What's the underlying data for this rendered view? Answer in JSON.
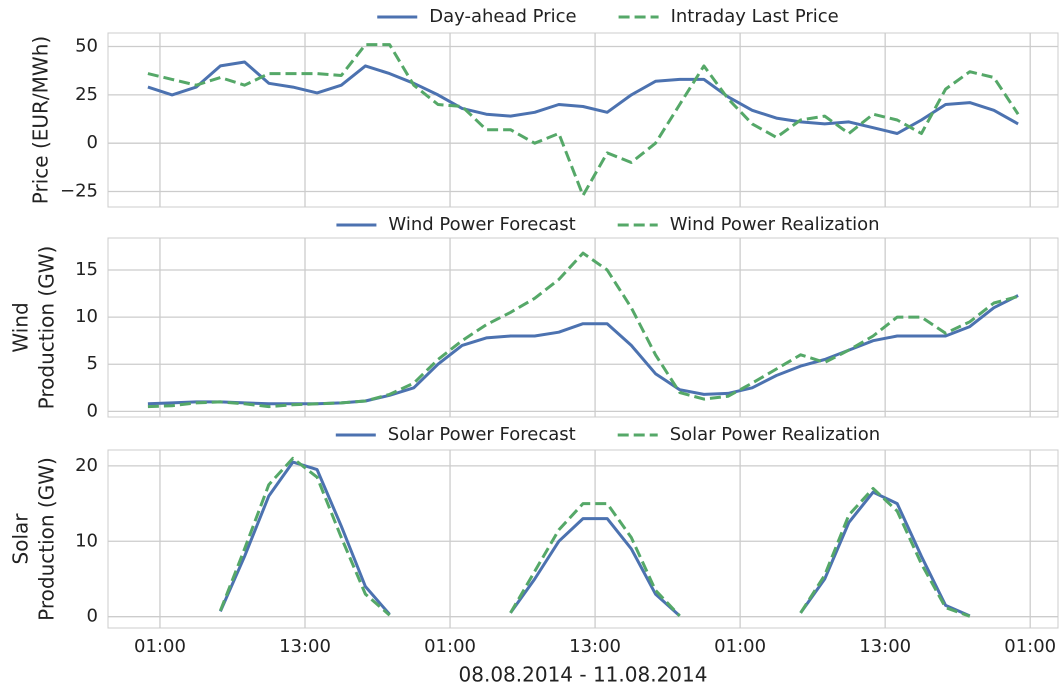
{
  "chart_data": [
    {
      "type": "line",
      "ylabel": [
        "Price (EUR/MWh)"
      ],
      "x": [
        0,
        2,
        4,
        6,
        8,
        10,
        12,
        14,
        16,
        18,
        20,
        22,
        24,
        26,
        28,
        30,
        32,
        34,
        36,
        38,
        40,
        42,
        44,
        46,
        48,
        50,
        52,
        54,
        56,
        58,
        60,
        62,
        64,
        66,
        68,
        70,
        72
      ],
      "xlim": [
        -3.3,
        75.3
      ],
      "xticks": [
        {
          "value": 1,
          "label": "01:00"
        },
        {
          "value": 13,
          "label": "13:00"
        },
        {
          "value": 25,
          "label": "01:00"
        },
        {
          "value": 37,
          "label": "13:00"
        },
        {
          "value": 49,
          "label": "01:00"
        },
        {
          "value": 61,
          "label": "13:00"
        },
        {
          "value": 73,
          "label": "01:00"
        }
      ],
      "ylim": [
        -33,
        57
      ],
      "yticks": [
        {
          "value": -25,
          "label": "−25"
        },
        0,
        25,
        50
      ],
      "grid": true,
      "series": [
        {
          "name": "Day-ahead Price",
          "color": "#4c72b0",
          "dashed": false,
          "values": [
            29,
            25,
            29,
            40,
            42,
            31,
            29,
            26,
            30,
            40,
            36,
            31,
            25,
            18,
            15,
            14,
            16,
            20,
            19,
            16,
            25,
            32,
            33,
            33,
            24,
            17,
            13,
            11,
            10,
            11,
            8,
            5,
            12,
            20,
            21,
            17,
            10
          ]
        },
        {
          "name": "Intraday Last Price",
          "color": "#55a868",
          "dashed": true,
          "values": [
            36,
            33,
            30,
            34,
            30,
            36,
            36,
            36,
            35,
            51,
            51,
            30,
            20,
            19,
            7,
            7,
            0,
            5,
            -27,
            -5,
            -10,
            0,
            20,
            40,
            23,
            10,
            3,
            12,
            14,
            5,
            15,
            12,
            5,
            28,
            37,
            34,
            15
          ]
        }
      ]
    },
    {
      "type": "line",
      "ylabel": [
        "Wind",
        "Production (GW)"
      ],
      "x": [
        0,
        2,
        4,
        6,
        8,
        10,
        12,
        14,
        16,
        18,
        20,
        22,
        24,
        26,
        28,
        30,
        32,
        34,
        36,
        38,
        40,
        42,
        44,
        46,
        48,
        50,
        52,
        54,
        56,
        58,
        60,
        62,
        64,
        66,
        68,
        70,
        72
      ],
      "xlim": [
        -3.3,
        75.3
      ],
      "xticks": [
        {
          "value": 1,
          "label": "01:00"
        },
        {
          "value": 13,
          "label": "13:00"
        },
        {
          "value": 25,
          "label": "01:00"
        },
        {
          "value": 37,
          "label": "13:00"
        },
        {
          "value": 49,
          "label": "01:00"
        },
        {
          "value": 61,
          "label": "13:00"
        },
        {
          "value": 73,
          "label": "01:00"
        }
      ],
      "ylim": [
        -0.6,
        18.4
      ],
      "yticks": [
        0,
        5,
        10,
        15
      ],
      "grid": true,
      "series": [
        {
          "name": "Wind Power Forecast",
          "color": "#4c72b0",
          "dashed": false,
          "values": [
            0.8,
            0.9,
            1.0,
            1.0,
            0.9,
            0.8,
            0.8,
            0.8,
            0.9,
            1.1,
            1.7,
            2.5,
            5,
            7,
            7.8,
            8,
            8,
            8.4,
            9.3,
            9.3,
            7,
            4,
            2.3,
            1.8,
            1.9,
            2.5,
            3.8,
            4.8,
            5.5,
            6.5,
            7.5,
            8,
            8,
            8,
            9,
            11,
            12.3
          ]
        },
        {
          "name": "Wind Power Realization",
          "color": "#55a868",
          "dashed": true,
          "values": [
            0.5,
            0.6,
            0.9,
            1.0,
            0.8,
            0.5,
            0.7,
            0.8,
            0.9,
            1.1,
            1.8,
            3,
            5.5,
            7.5,
            9.2,
            10.5,
            12,
            14,
            16.8,
            15,
            11,
            6,
            2,
            1.3,
            1.6,
            3,
            4.5,
            6,
            5.2,
            6.5,
            8,
            10,
            10,
            8.3,
            9.5,
            11.5,
            12.2
          ]
        }
      ]
    },
    {
      "type": "line",
      "ylabel": [
        "Solar",
        "Production (GW)"
      ],
      "xlabel": "08.08.2014 - 11.08.2014",
      "x": [
        0,
        2,
        4,
        6,
        8,
        10,
        12,
        14,
        16,
        18,
        20,
        22,
        24,
        26,
        28,
        30,
        32,
        34,
        36,
        38,
        40,
        42,
        44,
        46,
        48,
        50,
        52,
        54,
        56,
        58,
        60,
        62,
        64,
        66,
        68,
        70,
        72
      ],
      "xlim": [
        -3.3,
        75.3
      ],
      "xticks": [
        {
          "value": 1,
          "label": "01:00"
        },
        {
          "value": 13,
          "label": "13:00"
        },
        {
          "value": 25,
          "label": "01:00"
        },
        {
          "value": 37,
          "label": "13:00"
        },
        {
          "value": 49,
          "label": "01:00"
        },
        {
          "value": 61,
          "label": "13:00"
        },
        {
          "value": 73,
          "label": "01:00"
        }
      ],
      "ylim": [
        -1.5,
        22.1
      ],
      "yticks": [
        0,
        10,
        20
      ],
      "grid": true,
      "series": [
        {
          "name": "Solar Power Forecast",
          "color": "#4c72b0",
          "dashed": false,
          "values": [
            null,
            null,
            null,
            0.7,
            8,
            16,
            20.5,
            19.5,
            12,
            4,
            0.3,
            null,
            null,
            null,
            null,
            0.5,
            5,
            10,
            13,
            13,
            9,
            3,
            0.1,
            null,
            null,
            null,
            null,
            0.5,
            5,
            12.5,
            16.5,
            15,
            8,
            1.5,
            0.1,
            null,
            null
          ]
        },
        {
          "name": "Solar Power Realization",
          "color": "#55a868",
          "dashed": true,
          "values": [
            null,
            null,
            null,
            0.8,
            9,
            17.5,
            21,
            18.5,
            10.5,
            3,
            0.2,
            null,
            null,
            null,
            null,
            0.5,
            6,
            11.5,
            15,
            15,
            10.5,
            3.5,
            0.1,
            null,
            null,
            null,
            null,
            0.5,
            5.5,
            13.5,
            17,
            14,
            7,
            1.2,
            0.05,
            null,
            null
          ]
        }
      ]
    }
  ]
}
